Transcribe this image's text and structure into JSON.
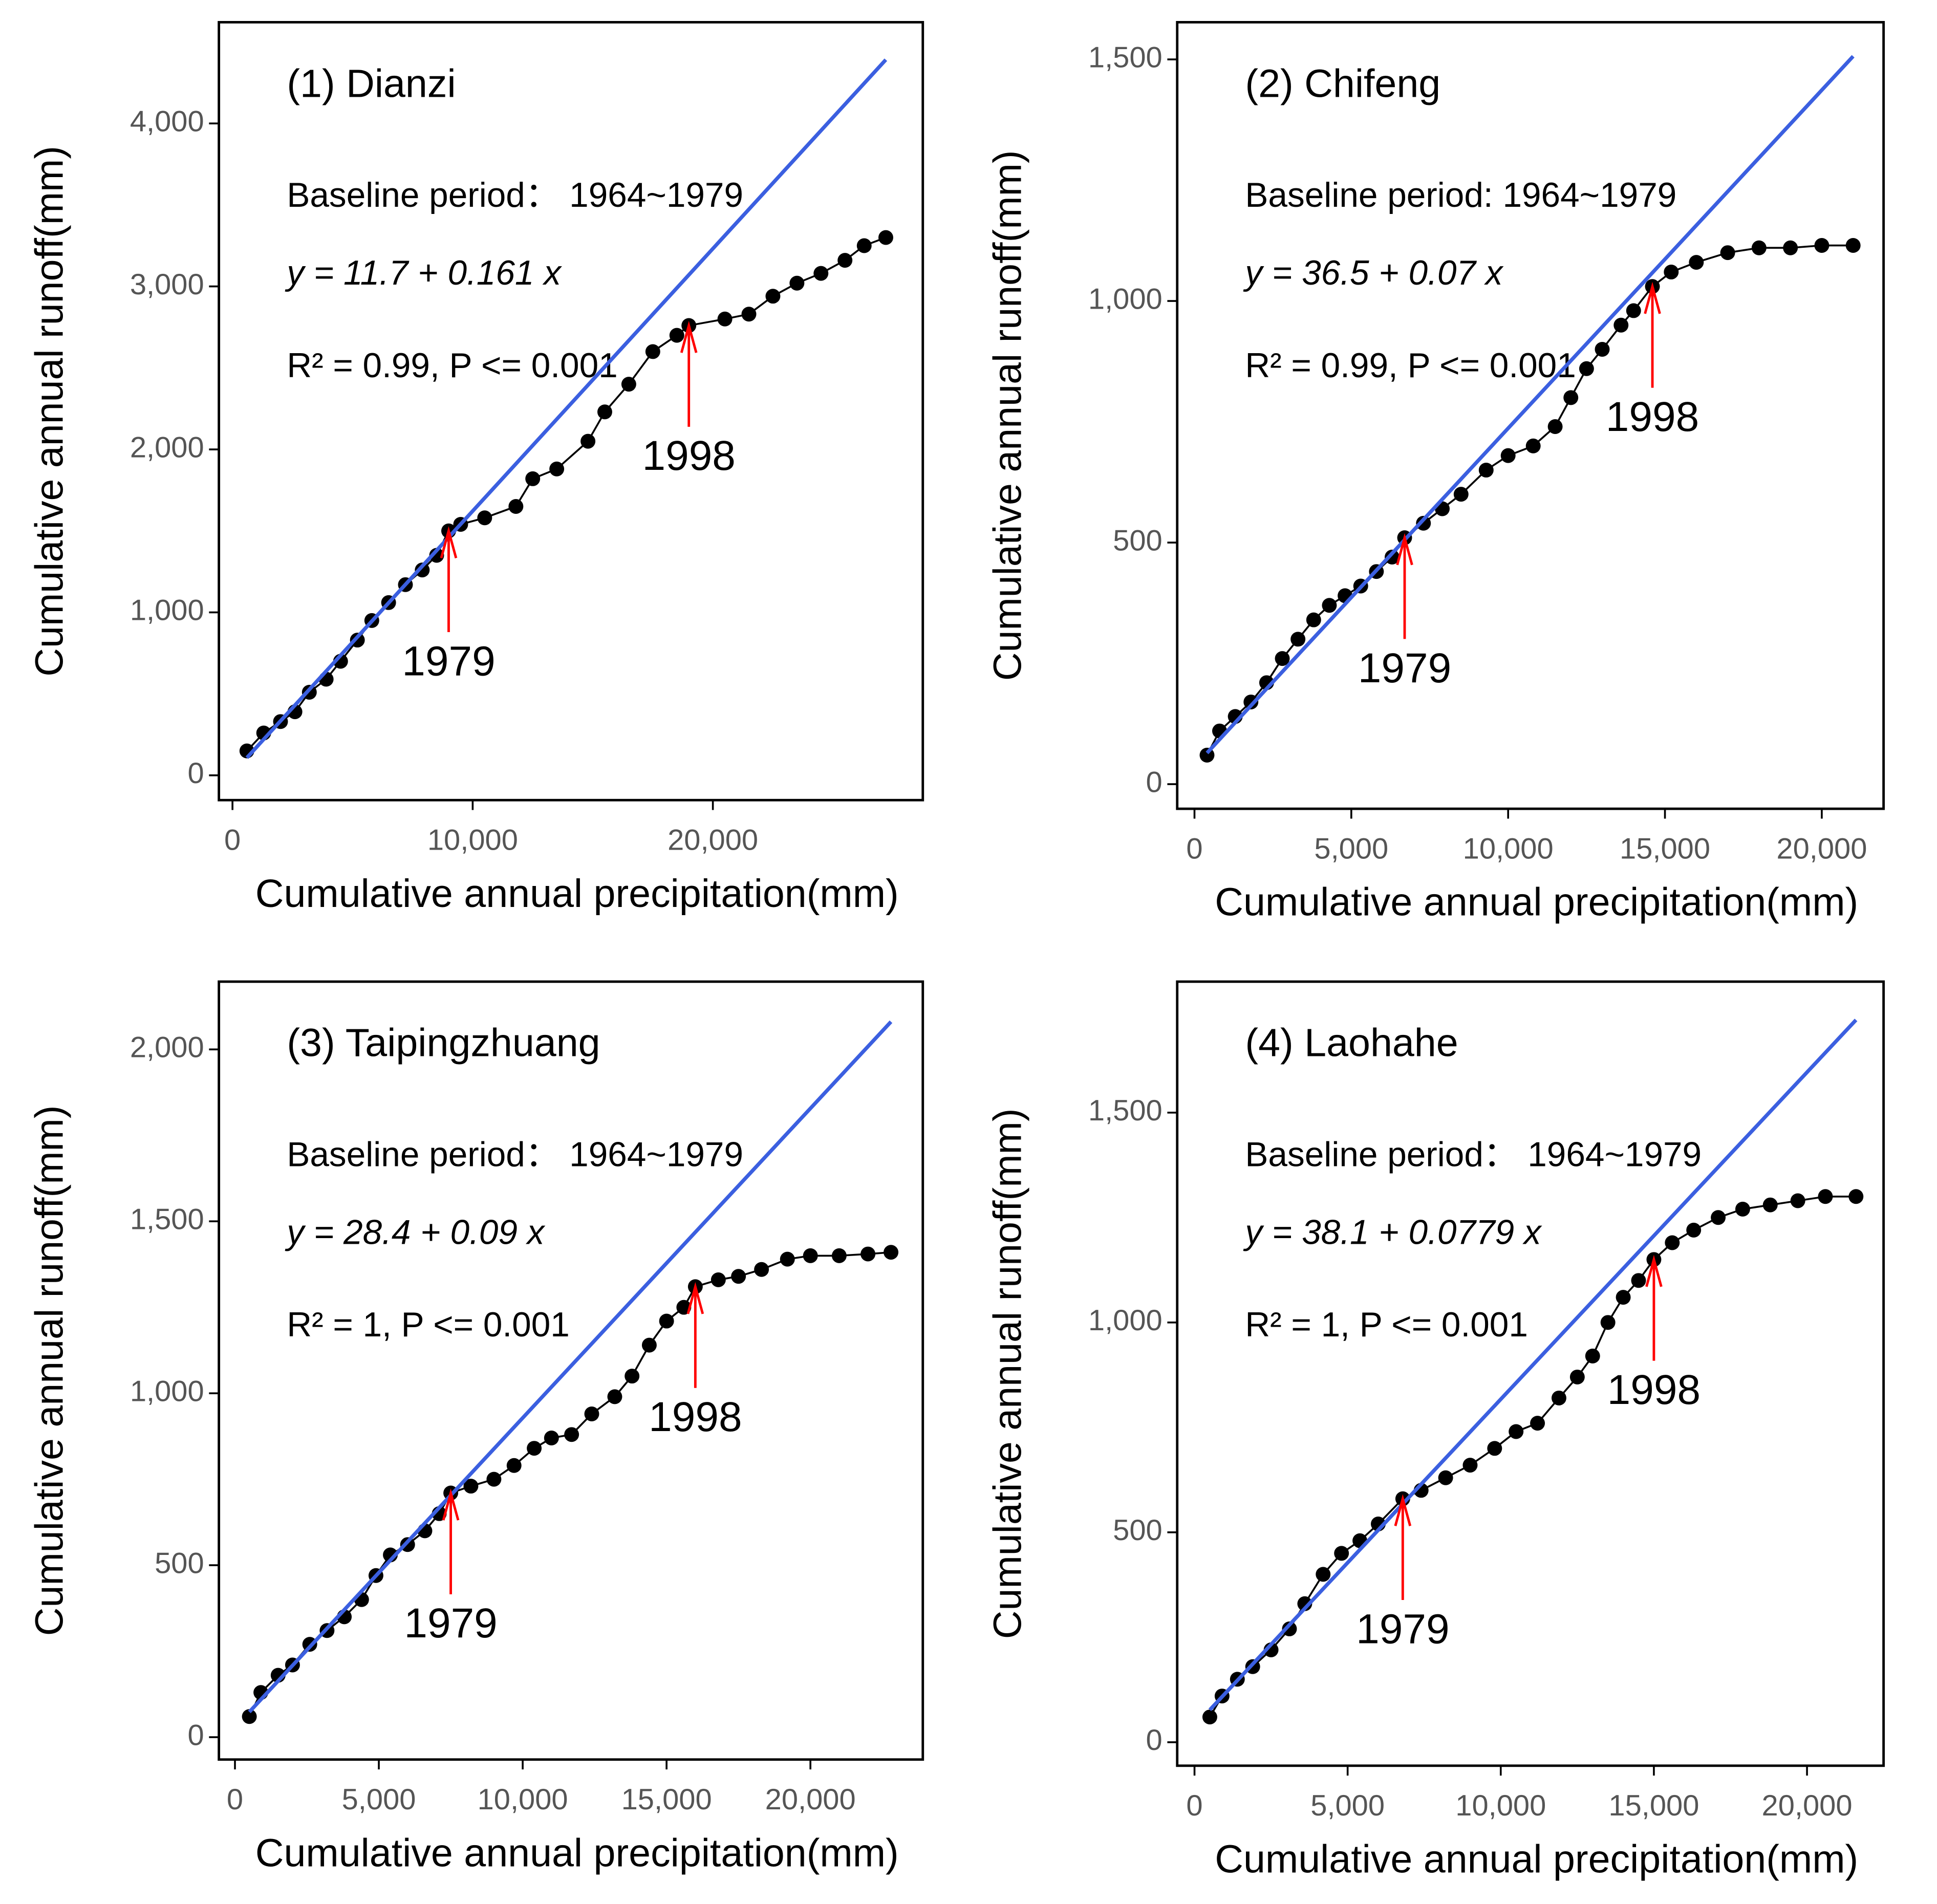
{
  "chart_data": [
    {
      "type": "scatter",
      "title": "(1) Dianzi",
      "period": "Baseline period： 1964~1979",
      "equation": "y = 11.7 + 0.161 x",
      "stats": "R² = 0.99, P <= 0.001",
      "xlabel": "Cumulative annual precipitation(mm)",
      "ylabel": "Cumulative annual runoff(mm)",
      "xlim": [
        -565,
        28740
      ],
      "ylim": [
        -152,
        4621
      ],
      "xticks": [
        0,
        {
          "value": 10000,
          "label": "10,000"
        },
        {
          "value": 20000,
          "label": "20,000"
        }
      ],
      "yticks": [
        0,
        {
          "value": 1000,
          "label": "1,000"
        },
        {
          "value": 2000,
          "label": "2,000"
        },
        {
          "value": 3000,
          "label": "3,000"
        },
        {
          "value": 4000,
          "label": "4,000"
        }
      ],
      "color": "#000000",
      "x": [
        600,
        1300,
        2000,
        2600,
        3200,
        3900,
        4500,
        5200,
        5800,
        6500,
        7200,
        7900,
        8500,
        9000,
        9500,
        10500,
        11800,
        12500,
        13500,
        14800,
        15500,
        16500,
        17500,
        18500,
        19000,
        20500,
        21500,
        22500,
        23500,
        24500,
        25500,
        26300,
        27200
      ],
      "values": [
        150,
        260,
        330,
        390,
        510,
        590,
        700,
        830,
        950,
        1060,
        1170,
        1260,
        1350,
        1500,
        1540,
        1580,
        1650,
        1820,
        1880,
        2050,
        2230,
        2400,
        2600,
        2700,
        2760,
        2800,
        2830,
        2940,
        3020,
        3080,
        3160,
        3250,
        3300
      ],
      "fit": {
        "color": "#3b5fe0",
        "x": [
          600,
          27200
        ],
        "values": [
          108.3,
          4390.9
        ]
      },
      "arrow_color": "#ff0000",
      "annotations": [
        {
          "text": "1979",
          "x": 9000,
          "y": 1500
        },
        {
          "text": "1998",
          "x": 19000,
          "y": 2760
        }
      ]
    },
    {
      "type": "scatter",
      "title": "(2) Chifeng",
      "period": "Baseline period: 1964~1979",
      "equation": "y = 36.5 + 0.07 x",
      "stats": "R² = 0.99, P <= 0.001",
      "xlabel": "Cumulative annual precipitation(mm)",
      "ylabel": "Cumulative annual runoff(mm)",
      "xlim": [
        -551,
        21970
      ],
      "ylim": [
        -51,
        1577
      ],
      "xticks": [
        0,
        {
          "value": 5000,
          "label": "5,000"
        },
        {
          "value": 10000,
          "label": "10,000"
        },
        {
          "value": 15000,
          "label": "15,000"
        },
        {
          "value": 20000,
          "label": "20,000"
        }
      ],
      "yticks": [
        0,
        500,
        {
          "value": 1000,
          "label": "1,000"
        },
        {
          "value": 1500,
          "label": "1,500"
        }
      ],
      "color": "#000000",
      "x": [
        400,
        800,
        1300,
        1800,
        2300,
        2800,
        3300,
        3800,
        4300,
        4800,
        5300,
        5800,
        6300,
        6700,
        7300,
        7900,
        8500,
        9300,
        10000,
        10800,
        11500,
        12000,
        12500,
        13000,
        13600,
        14000,
        14600,
        15200,
        16000,
        17000,
        18000,
        19000,
        20000,
        21000
      ],
      "values": [
        60,
        110,
        140,
        170,
        210,
        260,
        300,
        340,
        370,
        390,
        410,
        440,
        470,
        510,
        540,
        570,
        600,
        650,
        680,
        700,
        740,
        800,
        860,
        900,
        950,
        980,
        1030,
        1060,
        1080,
        1100,
        1110,
        1110,
        1115,
        1115
      ],
      "fit": {
        "color": "#3b5fe0",
        "x": [
          400,
          21000
        ],
        "values": [
          64.5,
          1506.5
        ]
      },
      "arrow_color": "#ff0000",
      "annotations": [
        {
          "text": "1979",
          "x": 6700,
          "y": 510
        },
        {
          "text": "1998",
          "x": 14600,
          "y": 1030
        }
      ]
    },
    {
      "type": "scatter",
      "title": "(3) Taipingzhuang",
      "period": "Baseline period： 1964~1979",
      "equation": "y = 28.4 + 0.09 x",
      "stats": "R² = 1, P <= 0.001",
      "xlabel": "Cumulative annual precipitation(mm)",
      "ylabel": "Cumulative annual runoff(mm)",
      "xlim": [
        -558,
        23906
      ],
      "ylim": [
        -65,
        2197
      ],
      "xticks": [
        0,
        {
          "value": 5000,
          "label": "5,000"
        },
        {
          "value": 10000,
          "label": "10,000"
        },
        {
          "value": 15000,
          "label": "15,000"
        },
        {
          "value": 20000,
          "label": "20,000"
        }
      ],
      "yticks": [
        0,
        500,
        {
          "value": 1000,
          "label": "1,000"
        },
        {
          "value": 1500,
          "label": "1,500"
        },
        {
          "value": 2000,
          "label": "2,000"
        }
      ],
      "color": "#000000",
      "x": [
        500,
        900,
        1500,
        2000,
        2600,
        3200,
        3800,
        4400,
        4900,
        5400,
        6000,
        6600,
        7100,
        7500,
        8200,
        9000,
        9700,
        10400,
        11000,
        11700,
        12400,
        13200,
        13800,
        14400,
        15000,
        15600,
        16000,
        16800,
        17500,
        18300,
        19200,
        20000,
        21000,
        22000,
        22800
      ],
      "values": [
        60,
        130,
        180,
        210,
        270,
        310,
        350,
        400,
        470,
        530,
        560,
        600,
        650,
        710,
        730,
        750,
        790,
        840,
        870,
        880,
        940,
        990,
        1050,
        1140,
        1210,
        1250,
        1310,
        1330,
        1340,
        1360,
        1390,
        1400,
        1400,
        1405,
        1410
      ],
      "fit": {
        "color": "#3b5fe0",
        "x": [
          500,
          22800
        ],
        "values": [
          73.4,
          2080.4
        ]
      },
      "arrow_color": "#ff0000",
      "annotations": [
        {
          "text": "1979",
          "x": 7500,
          "y": 710
        },
        {
          "text": "1998",
          "x": 16000,
          "y": 1310
        }
      ]
    },
    {
      "type": "scatter",
      "title": "(4) Laohahe",
      "period": "Baseline period： 1964~1979",
      "equation": "y = 38.1 + 0.0779 x",
      "stats": "R² = 1, P <= 0.001",
      "xlabel": "Cumulative annual precipitation(mm)",
      "ylabel": "Cumulative annual runoff(mm)",
      "xlim": [
        -565,
        22500
      ],
      "ylim": [
        -56,
        1812
      ],
      "xticks": [
        0,
        {
          "value": 5000,
          "label": "5,000"
        },
        {
          "value": 10000,
          "label": "10,000"
        },
        {
          "value": 15000,
          "label": "15,000"
        },
        {
          "value": 20000,
          "label": "20,000"
        }
      ],
      "yticks": [
        0,
        500,
        {
          "value": 1000,
          "label": "1,000"
        },
        {
          "value": 1500,
          "label": "1,500"
        }
      ],
      "color": "#000000",
      "x": [
        500,
        900,
        1400,
        1900,
        2500,
        3100,
        3600,
        4200,
        4800,
        5400,
        6000,
        6800,
        7400,
        8200,
        9000,
        9800,
        10500,
        11200,
        11900,
        12500,
        13000,
        13500,
        14000,
        14500,
        15000,
        15600,
        16300,
        17100,
        17900,
        18800,
        19700,
        20600,
        21600
      ],
      "values": [
        60,
        110,
        150,
        180,
        220,
        270,
        330,
        400,
        450,
        480,
        520,
        580,
        600,
        630,
        660,
        700,
        740,
        760,
        820,
        870,
        920,
        1000,
        1060,
        1100,
        1150,
        1190,
        1220,
        1250,
        1270,
        1280,
        1290,
        1300,
        1300
      ],
      "fit": {
        "color": "#3b5fe0",
        "x": [
          500,
          21600
        ],
        "values": [
          77.05,
          1720.74
        ]
      },
      "arrow_color": "#ff0000",
      "annotations": [
        {
          "text": "1979",
          "x": 6800,
          "y": 580
        },
        {
          "text": "1998",
          "x": 15000,
          "y": 1150
        }
      ]
    }
  ]
}
